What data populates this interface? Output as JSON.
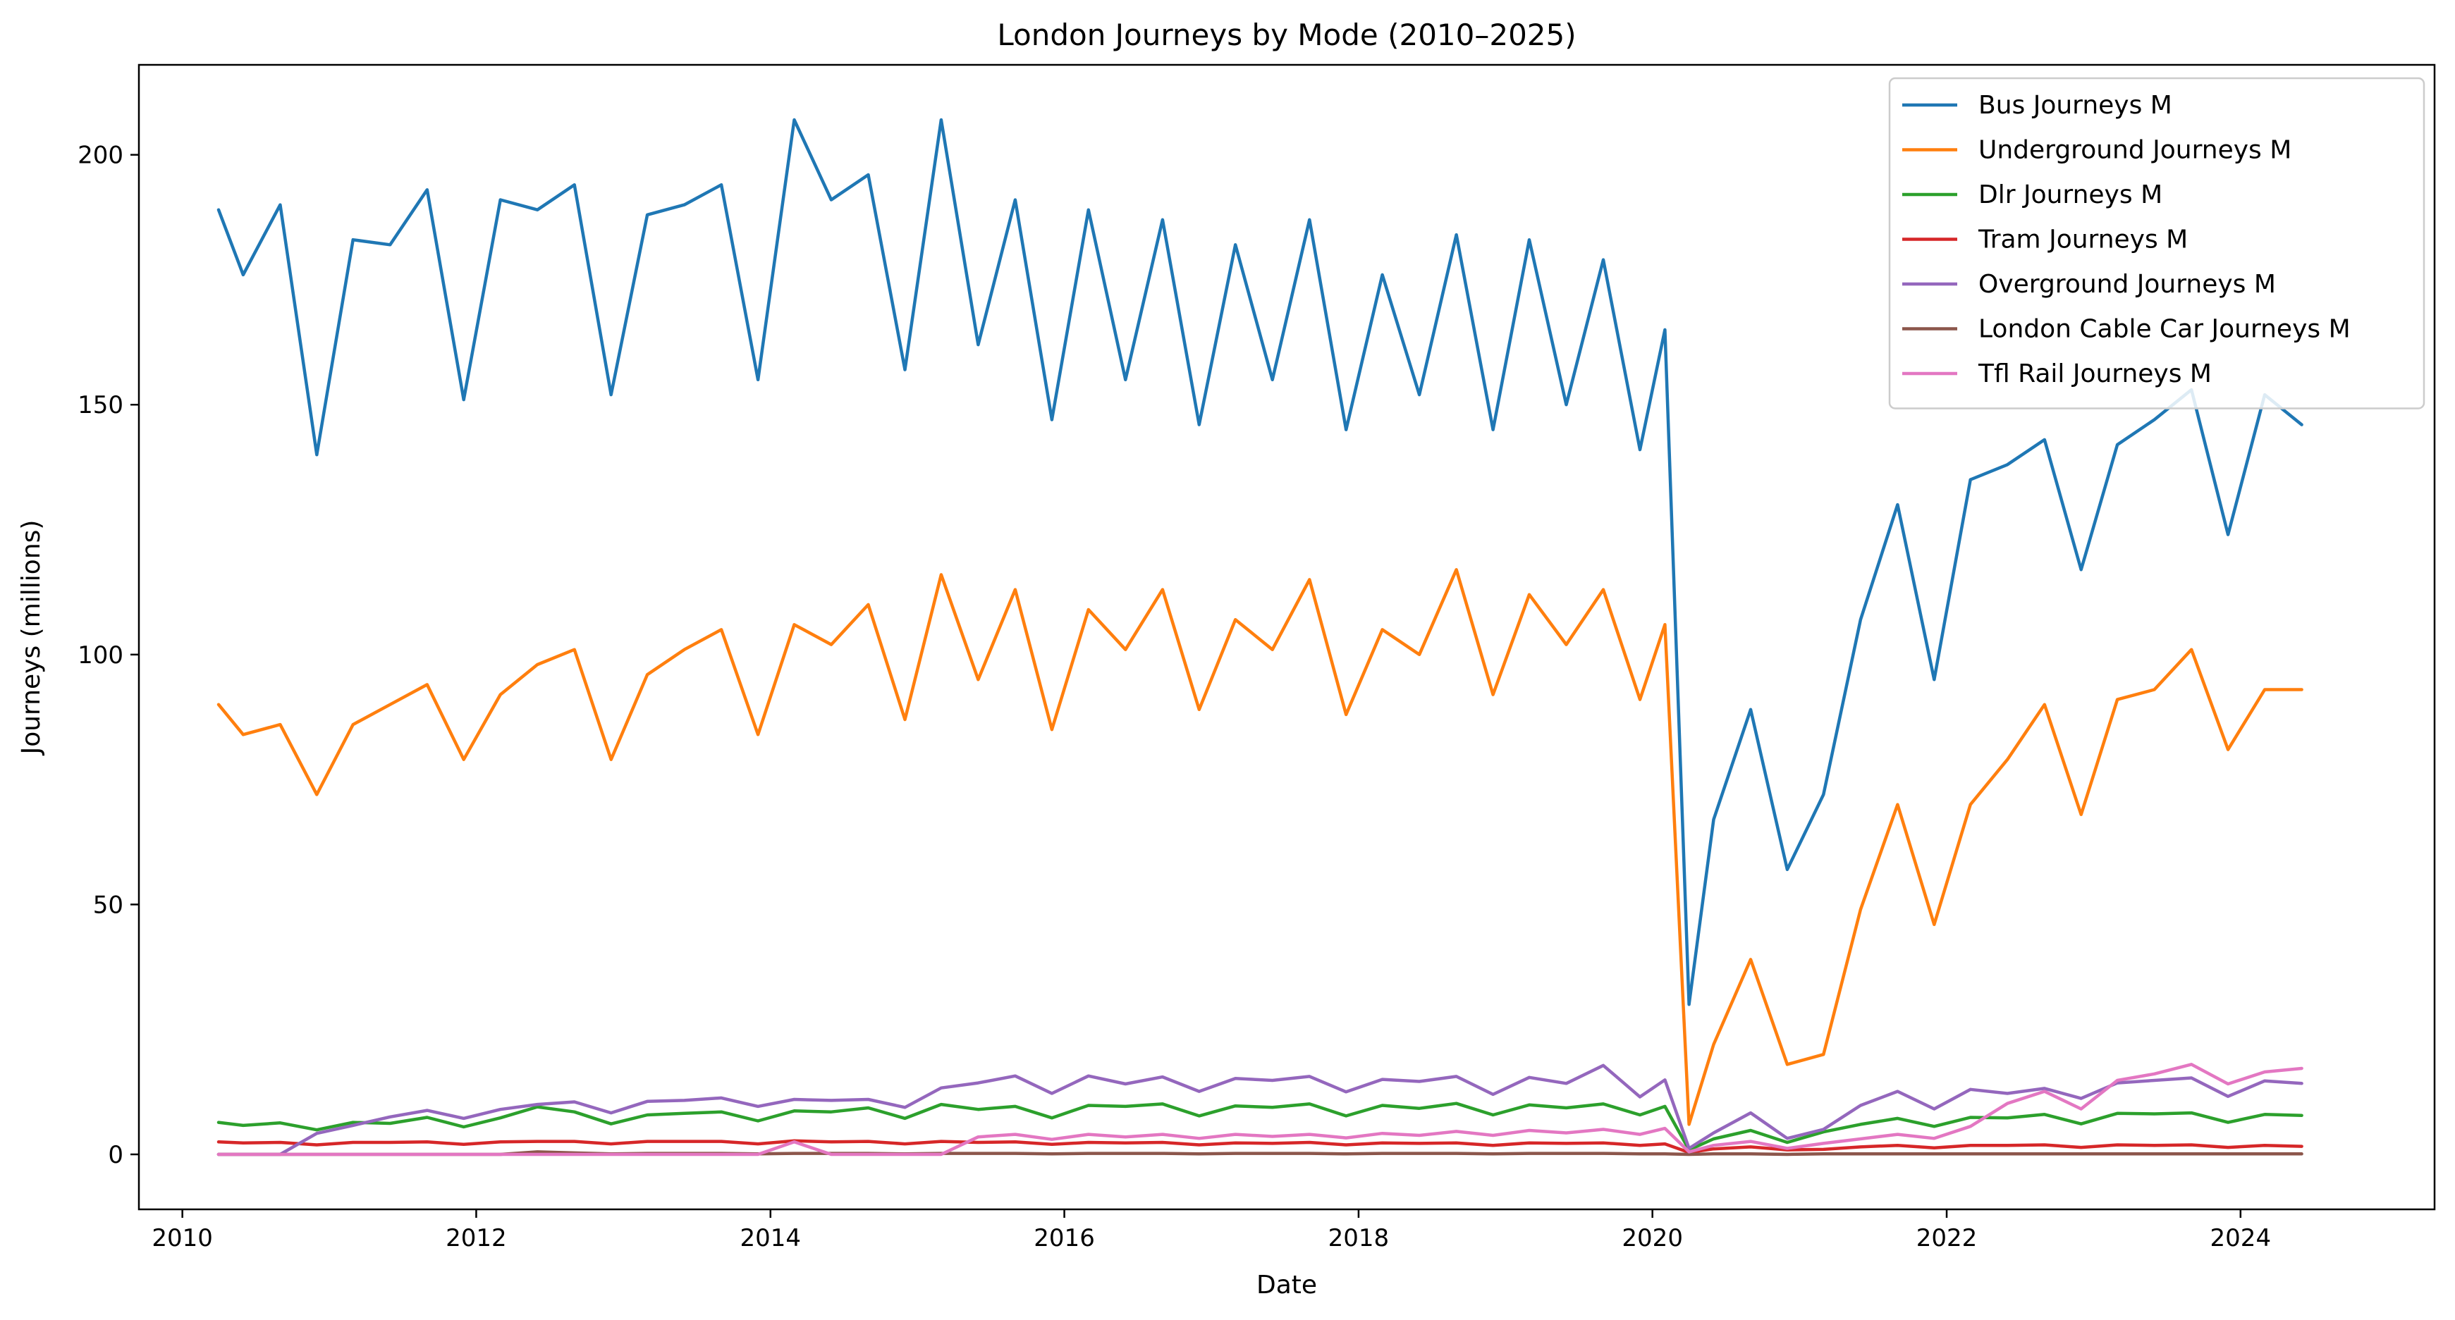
{
  "chart_data": {
    "type": "line",
    "title": "London Journeys by Mode (2010–2025)",
    "xlabel": "Date",
    "ylabel": "Journeys (millions)",
    "x_range": [
      "2009-09-15",
      "2025-04-27"
    ],
    "x_ticks": [
      "2010",
      "2012",
      "2014",
      "2016",
      "2018",
      "2020",
      "2022",
      "2024"
    ],
    "ylim": [
      -11,
      218
    ],
    "y_ticks": [
      0,
      50,
      100,
      150,
      200
    ],
    "grid": false,
    "legend_position": "top-right",
    "x": [
      "2010-04",
      "2010-06",
      "2010-09",
      "2010-12",
      "2011-03",
      "2011-06",
      "2011-09",
      "2011-12",
      "2012-03",
      "2012-06",
      "2012-09",
      "2012-12",
      "2013-03",
      "2013-06",
      "2013-09",
      "2013-12",
      "2014-03",
      "2014-06",
      "2014-09",
      "2014-12",
      "2015-03",
      "2015-06",
      "2015-09",
      "2015-12",
      "2016-03",
      "2016-06",
      "2016-09",
      "2016-12",
      "2017-03",
      "2017-06",
      "2017-09",
      "2017-12",
      "2018-03",
      "2018-06",
      "2018-09",
      "2018-12",
      "2019-03",
      "2019-06",
      "2019-09",
      "2019-12",
      "2020-02",
      "2020-04",
      "2020-06",
      "2020-09",
      "2020-12",
      "2021-03",
      "2021-06",
      "2021-09",
      "2021-12",
      "2022-03",
      "2022-06",
      "2022-09",
      "2022-12",
      "2023-03",
      "2023-06",
      "2023-09",
      "2023-12",
      "2024-03",
      "2024-06"
    ],
    "series": [
      {
        "name": "Bus Journeys M",
        "color": "#1f77b4",
        "values": [
          189,
          176,
          190,
          140,
          183,
          182,
          193,
          151,
          191,
          189,
          194,
          152,
          188,
          190,
          194,
          155,
          207,
          191,
          196,
          157,
          207,
          162,
          191,
          147,
          189,
          155,
          187,
          146,
          182,
          155,
          187,
          145,
          176,
          152,
          184,
          145,
          183,
          150,
          179,
          141,
          165,
          30,
          67,
          89,
          57,
          72,
          107,
          130,
          95,
          135,
          138,
          143,
          117,
          142,
          147,
          153,
          124,
          152,
          146
        ]
      },
      {
        "name": "Underground Journeys M",
        "color": "#ff7f0e",
        "values": [
          90,
          84,
          86,
          72,
          86,
          90,
          94,
          79,
          92,
          98,
          101,
          79,
          96,
          101,
          105,
          84,
          106,
          102,
          110,
          87,
          116,
          95,
          113,
          85,
          109,
          101,
          113,
          89,
          107,
          101,
          115,
          88,
          105,
          100,
          117,
          92,
          112,
          102,
          113,
          91,
          106,
          6,
          22,
          39,
          18,
          20,
          49,
          70,
          46,
          70,
          79,
          90,
          68,
          91,
          93,
          101,
          81,
          93,
          93
        ]
      },
      {
        "name": "Dlr Journeys M",
        "color": "#2ca02c",
        "values": [
          6.4,
          5.8,
          6.3,
          4.9,
          6.4,
          6.2,
          7.4,
          5.5,
          7.3,
          9.5,
          8.5,
          6.1,
          7.9,
          8.2,
          8.5,
          6.7,
          8.7,
          8.5,
          9.3,
          7.2,
          10.0,
          9.0,
          9.6,
          7.3,
          9.8,
          9.6,
          10.1,
          7.7,
          9.7,
          9.4,
          10.1,
          7.7,
          9.8,
          9.2,
          10.2,
          7.9,
          9.9,
          9.3,
          10.1,
          7.9,
          9.6,
          0.9,
          3.1,
          4.8,
          2.4,
          4.5,
          6.0,
          7.2,
          5.6,
          7.4,
          7.3,
          8.0,
          6.1,
          8.2,
          8.1,
          8.3,
          6.4,
          8.0,
          7.8
        ]
      },
      {
        "name": "Tram Journeys M",
        "color": "#d62728",
        "values": [
          2.5,
          2.3,
          2.4,
          1.9,
          2.4,
          2.4,
          2.5,
          2.0,
          2.5,
          2.6,
          2.6,
          2.1,
          2.6,
          2.6,
          2.6,
          2.1,
          2.7,
          2.5,
          2.6,
          2.1,
          2.6,
          2.4,
          2.5,
          2.0,
          2.4,
          2.3,
          2.4,
          1.9,
          2.3,
          2.2,
          2.4,
          1.9,
          2.3,
          2.2,
          2.3,
          1.8,
          2.3,
          2.2,
          2.3,
          1.8,
          2.1,
          0.4,
          1.1,
          1.5,
          0.9,
          1.0,
          1.5,
          1.8,
          1.3,
          1.8,
          1.8,
          1.9,
          1.4,
          1.9,
          1.8,
          1.9,
          1.4,
          1.8,
          1.6
        ]
      },
      {
        "name": "Overground Journeys M",
        "color": "#9467bd",
        "values": [
          0,
          0,
          0,
          4.2,
          5.8,
          7.5,
          8.8,
          7.2,
          9.0,
          10.0,
          10.5,
          8.3,
          10.6,
          10.8,
          11.3,
          9.6,
          11.0,
          10.8,
          11.0,
          9.4,
          13.3,
          14.3,
          15.7,
          12.2,
          15.7,
          14.1,
          15.5,
          12.6,
          15.2,
          14.8,
          15.6,
          12.5,
          15.0,
          14.6,
          15.6,
          12.0,
          15.4,
          14.2,
          17.8,
          11.5,
          14.9,
          1.2,
          4.3,
          8.3,
          3.2,
          5.0,
          9.8,
          12.6,
          9.1,
          13.0,
          12.2,
          13.2,
          11.2,
          14.3,
          14.8,
          15.3,
          11.6,
          14.7,
          14.2
        ]
      },
      {
        "name": "London Cable Car Journeys M",
        "color": "#8c564b",
        "values": [
          0,
          0,
          0,
          0,
          0,
          0,
          0,
          0,
          0,
          0.5,
          0.3,
          0.1,
          0.2,
          0.2,
          0.2,
          0.1,
          0.2,
          0.2,
          0.2,
          0.1,
          0.2,
          0.2,
          0.2,
          0.1,
          0.2,
          0.2,
          0.2,
          0.1,
          0.2,
          0.2,
          0.2,
          0.1,
          0.2,
          0.2,
          0.2,
          0.1,
          0.2,
          0.2,
          0.2,
          0.1,
          0.1,
          0,
          0.1,
          0.1,
          0,
          0.1,
          0.1,
          0.1,
          0.1,
          0.1,
          0.1,
          0.1,
          0.1,
          0.1,
          0.1,
          0.1,
          0.1,
          0.1,
          0.1
        ]
      },
      {
        "name": "Tfl Rail Journeys M",
        "color": "#e377c2",
        "values": [
          0,
          0,
          0,
          0,
          0,
          0,
          0,
          0,
          0,
          0,
          0,
          0,
          0,
          0,
          0,
          0,
          2.5,
          0,
          0,
          0,
          0,
          3.5,
          4.0,
          3.0,
          4.0,
          3.5,
          4.0,
          3.2,
          4.0,
          3.6,
          4.0,
          3.3,
          4.2,
          3.8,
          4.6,
          3.8,
          4.8,
          4.3,
          5.0,
          4.0,
          5.2,
          0.5,
          1.8,
          2.6,
          1.2,
          2.2,
          3.1,
          4.0,
          3.2,
          5.6,
          10.2,
          12.6,
          9.1,
          14.8,
          16.1,
          18.0,
          14.1,
          16.5,
          17.2
        ]
      }
    ]
  }
}
